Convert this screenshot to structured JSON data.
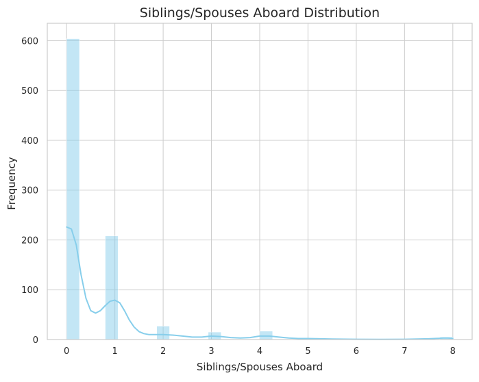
{
  "chart_data": {
    "type": "bar",
    "title": "Siblings/Spouses Aboard Distribution",
    "xlabel": "Siblings/Spouses Aboard",
    "ylabel": "Frequency",
    "xlim": [
      -0.4,
      8.4
    ],
    "ylim": [
      0,
      635
    ],
    "xticks": [
      "0",
      "1",
      "2",
      "3",
      "4",
      "5",
      "6",
      "7",
      "8"
    ],
    "yticks": [
      "0",
      "100",
      "200",
      "300",
      "400",
      "500",
      "600"
    ],
    "grid": true,
    "bars": [
      {
        "x0": 0.0,
        "x1": 0.267,
        "value": 604
      },
      {
        "x0": 0.8,
        "x1": 1.067,
        "value": 208
      },
      {
        "x0": 1.867,
        "x1": 2.133,
        "value": 27
      },
      {
        "x0": 2.933,
        "x1": 3.2,
        "value": 15
      },
      {
        "x0": 4.0,
        "x1": 4.267,
        "value": 17
      },
      {
        "x0": 7.733,
        "x1": 8.0,
        "value": 5
      }
    ],
    "kde": {
      "x": [
        0,
        0.1,
        0.2,
        0.3,
        0.4,
        0.5,
        0.6,
        0.7,
        0.8,
        0.9,
        1.0,
        1.1,
        1.2,
        1.3,
        1.4,
        1.5,
        1.6,
        1.7,
        1.8,
        1.9,
        2.0,
        2.2,
        2.4,
        2.6,
        2.8,
        3.0,
        3.2,
        3.4,
        3.6,
        3.8,
        4.0,
        4.2,
        4.4,
        4.6,
        4.8,
        5.0,
        5.5,
        6.0,
        6.5,
        7.0,
        7.5,
        7.7,
        7.8,
        7.9,
        8.0
      ],
      "y": [
        226,
        222,
        190,
        130,
        83,
        58,
        53,
        58,
        68,
        77,
        79,
        74,
        58,
        39,
        25,
        16,
        12,
        10,
        10,
        10,
        10,
        9,
        7,
        5,
        5,
        7,
        6,
        4,
        3,
        4,
        7,
        7,
        5,
        3,
        2,
        2,
        1,
        0.5,
        0.3,
        0.5,
        1.5,
        2.5,
        3,
        3,
        2.5
      ],
      "color": "#87ceeb"
    },
    "bar_color": "#87ceeb"
  }
}
